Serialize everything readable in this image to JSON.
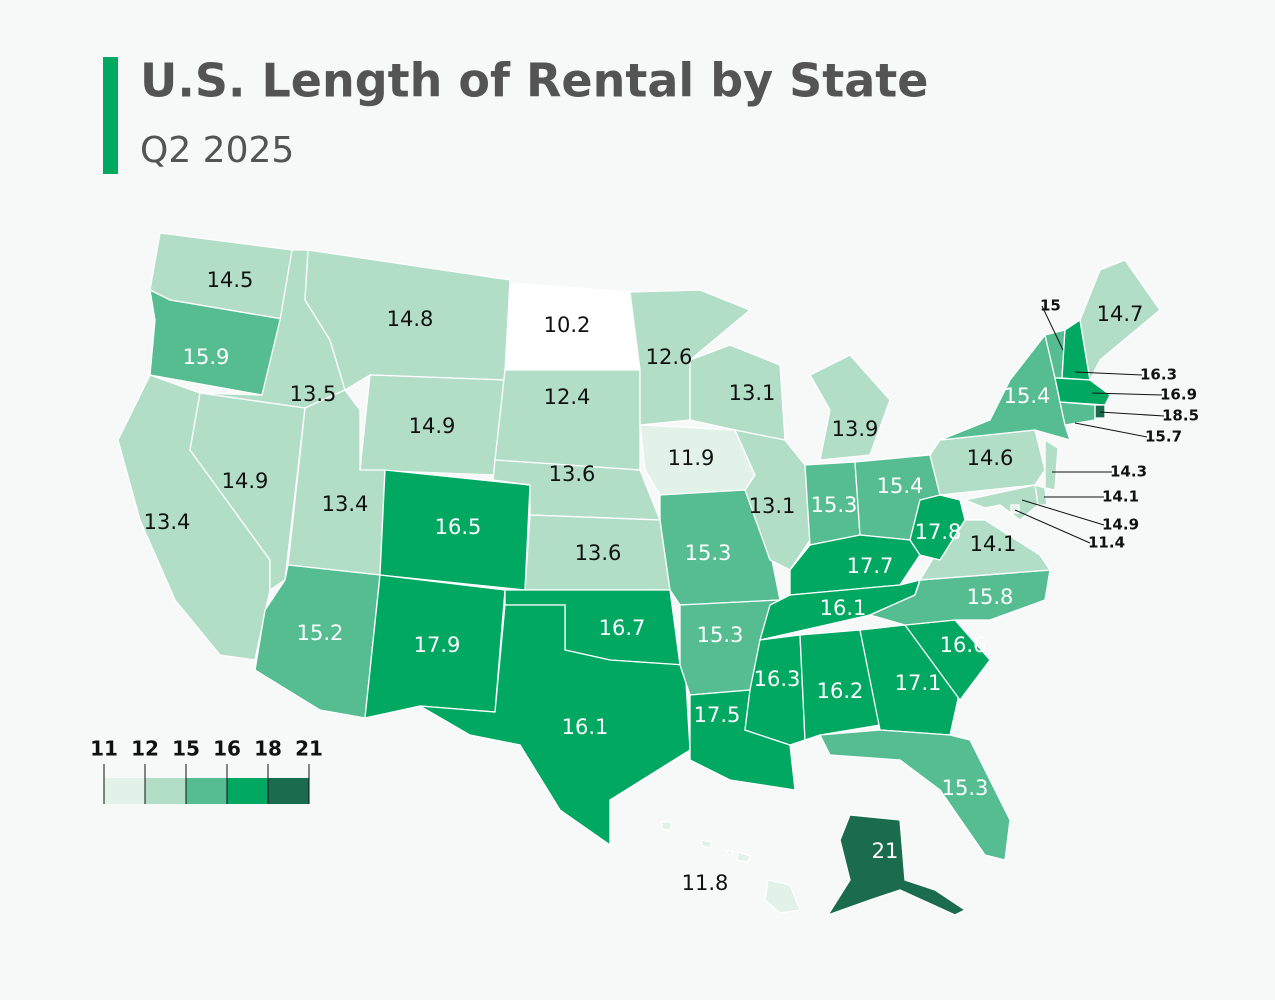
{
  "chart_data": {
    "type": "choropleth",
    "title": "U.S. Length of Rental by State",
    "subtitle": "Q2 2025",
    "values": [
      14.5,
      15.9,
      13.4,
      13.5,
      14.9,
      14.8,
      14.9,
      13.4,
      15.2,
      16.5,
      17.9,
      10.2,
      12.4,
      13.6,
      13.6,
      16.7,
      16.1,
      12.6,
      11.9,
      15.3,
      15.3,
      17.5,
      13.1,
      13.1,
      13.9,
      15.3,
      15.4,
      17.7,
      16.1,
      16.3,
      16.2,
      17.1,
      15.3,
      16.6,
      15.8,
      14.1,
      17.8,
      14.6,
      15.4,
      15,
      16.3,
      14.7,
      16.9,
      18.5,
      15.7,
      14.3,
      14.1,
      14.9,
      11.4,
      21,
      11.8
    ],
    "legend": {
      "bins": [
        11,
        12,
        15,
        16,
        18,
        21
      ],
      "colors": [
        "#e2f2e9",
        "#b2dec7",
        "#55bd91",
        "#00a862",
        "#1b6c4e"
      ]
    },
    "below_color": "#ffffff"
  }
}
